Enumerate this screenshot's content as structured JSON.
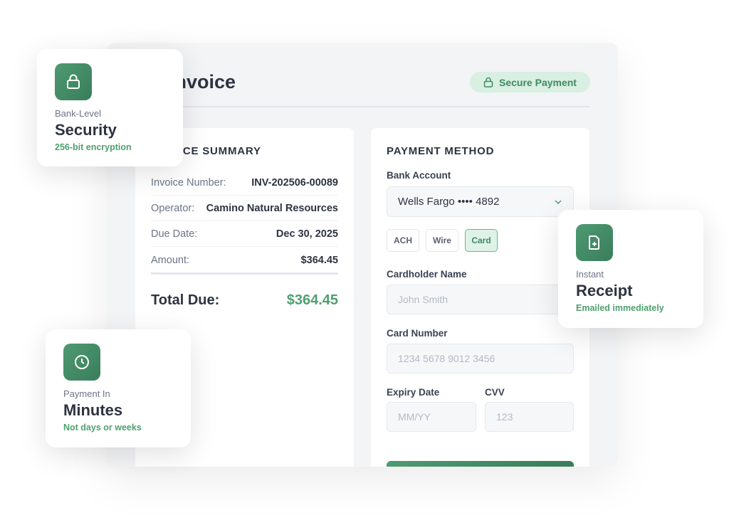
{
  "header": {
    "title": "Invoice",
    "secure_badge": "Secure Payment"
  },
  "summary": {
    "title": "INVOICE SUMMARY",
    "rows": [
      {
        "label": "Invoice Number:",
        "value": "INV-202506-00089"
      },
      {
        "label": "Operator:",
        "value": "Camino Natural Resources"
      },
      {
        "label": "Due Date:",
        "value": "Dec 30, 2025"
      },
      {
        "label": "Amount:",
        "value": "$364.45"
      }
    ],
    "total_label": "Total Due:",
    "total_value": "$364.45"
  },
  "payment": {
    "title": "PAYMENT METHOD",
    "bank_label": "Bank Account",
    "bank_value": "Wells Fargo •••• 4892",
    "methods": [
      "ACH",
      "Wire",
      "Card"
    ],
    "selected_method": "Card",
    "cardholder_label": "Cardholder Name",
    "cardholder_placeholder": "John Smith",
    "card_label": "Card Number",
    "card_placeholder": "1234 5678 9012 3456",
    "expiry_label": "Expiry Date",
    "expiry_placeholder": "MM/YY",
    "cvv_label": "CVV",
    "cvv_placeholder": "123"
  },
  "features": {
    "security": {
      "icon": "lock-icon",
      "sub": "Bank-Level",
      "main": "Security",
      "note": "256-bit encryption"
    },
    "receipt": {
      "icon": "file-plus-icon",
      "sub": "Instant",
      "main": "Receipt",
      "note": "Emailed immediately"
    },
    "speed": {
      "icon": "clock-icon",
      "sub": "Payment In",
      "main": "Minutes",
      "note": "Not days or weeks"
    }
  },
  "colors": {
    "accent": "#3f8a63",
    "accent_light": "#d8efe2",
    "total": "#4fa06f"
  }
}
